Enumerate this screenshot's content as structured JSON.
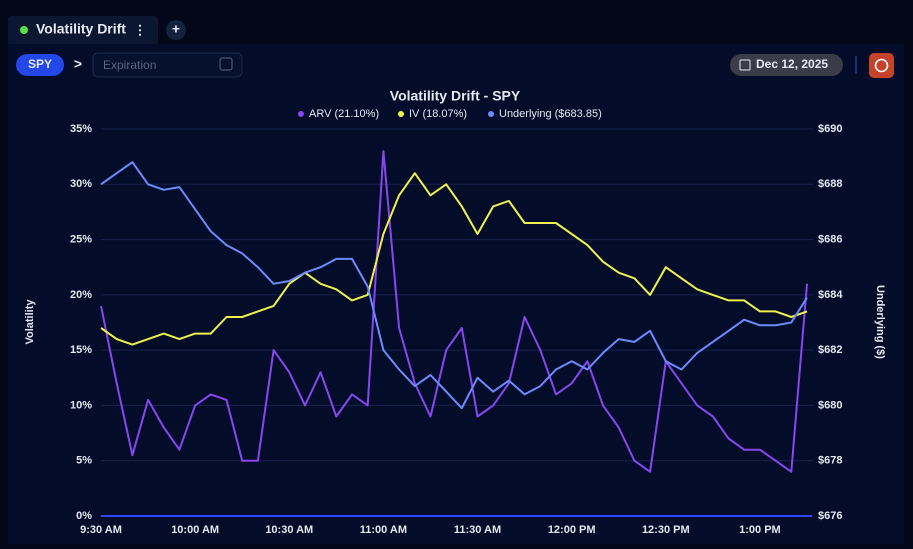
{
  "ui": {
    "tab_title": "Volatility Drift",
    "tab_menu": "⋮",
    "add_tab": "+",
    "symbol": "SPY",
    "chevron": ">",
    "expiration_placeholder": "Expiration",
    "date": "Dec 12, 2025"
  },
  "chart_data": {
    "type": "line",
    "title": "Volatility Drift - SPY",
    "y_label": "Volatility",
    "y2_label": "Underlying ($)",
    "categories": [
      "9:30 AM",
      null,
      null,
      null,
      null,
      null,
      "10:00 AM",
      null,
      null,
      null,
      null,
      null,
      "10:30 AM",
      null,
      null,
      null,
      null,
      null,
      "11:00 AM",
      null,
      null,
      null,
      null,
      null,
      "11:30 AM",
      null,
      null,
      null,
      null,
      null,
      "12:00 PM",
      null,
      null,
      null,
      null,
      null,
      "12:30 PM",
      null,
      null,
      null,
      null,
      null,
      "1:00 PM",
      null,
      null,
      null
    ],
    "series": [
      {
        "name": "ARV (21.10%)",
        "color": "#8b45f0",
        "axis": "y",
        "values": [
          19,
          12,
          5.5,
          10.5,
          8,
          6,
          10,
          11,
          10.5,
          5,
          5,
          15,
          13,
          10,
          13,
          9,
          11,
          10,
          33,
          17,
          12,
          9,
          15,
          17,
          9,
          10,
          12,
          18,
          15,
          11,
          12,
          14,
          10,
          8,
          5,
          4,
          14,
          12,
          10,
          9,
          7,
          6,
          6,
          5,
          4,
          21
        ]
      },
      {
        "name": "IV (18.07%)",
        "color": "#f2f04a",
        "axis": "y",
        "values": [
          17,
          16,
          15.5,
          16,
          16.5,
          16,
          16.5,
          16.5,
          18,
          18,
          18.5,
          19,
          21,
          22,
          21,
          20.5,
          19.5,
          20,
          25.5,
          29,
          31,
          29,
          30,
          28,
          25.5,
          28,
          28.5,
          26.5,
          26.5,
          26.5,
          25.5,
          24.5,
          23,
          22,
          21.5,
          20,
          22.5,
          21.5,
          20.5,
          20,
          19.5,
          19.5,
          18.5,
          18.5,
          18,
          18.5
        ]
      },
      {
        "name": "Underlying ($683.85)",
        "color": "#6b8cff",
        "axis": "y2",
        "values": [
          688.0,
          688.4,
          688.8,
          688.0,
          687.8,
          687.9,
          687.1,
          686.3,
          685.8,
          685.5,
          685.0,
          684.4,
          684.5,
          684.8,
          685.0,
          685.3,
          685.3,
          684.3,
          682.0,
          681.3,
          680.7,
          681.1,
          680.5,
          679.9,
          681.0,
          680.5,
          680.9,
          680.4,
          680.7,
          681.3,
          681.6,
          681.3,
          681.9,
          682.4,
          682.3,
          682.7,
          681.6,
          681.3,
          681.9,
          682.3,
          682.7,
          683.1,
          682.9,
          682.9,
          683.0,
          683.9
        ]
      }
    ],
    "ylim": [
      0,
      35
    ],
    "yticks": [
      {
        "value": 0,
        "label": "0%"
      },
      {
        "value": 5,
        "label": "5%"
      },
      {
        "value": 10,
        "label": "10%"
      },
      {
        "value": 15,
        "label": "15%"
      },
      {
        "value": 20,
        "label": "20%"
      },
      {
        "value": 25,
        "label": "25%"
      },
      {
        "value": 30,
        "label": "30%"
      },
      {
        "value": 35,
        "label": "35%"
      }
    ],
    "y2lim": [
      676,
      690
    ],
    "y2ticks": [
      {
        "value": 676,
        "label": "$676"
      },
      {
        "value": 678,
        "label": "$678"
      },
      {
        "value": 680,
        "label": "$680"
      },
      {
        "value": 682,
        "label": "$682"
      },
      {
        "value": 684,
        "label": "$684"
      },
      {
        "value": 686,
        "label": "$686"
      },
      {
        "value": 688,
        "label": "$688"
      },
      {
        "value": 690,
        "label": "$690"
      }
    ],
    "grid": true,
    "legend": "top"
  }
}
